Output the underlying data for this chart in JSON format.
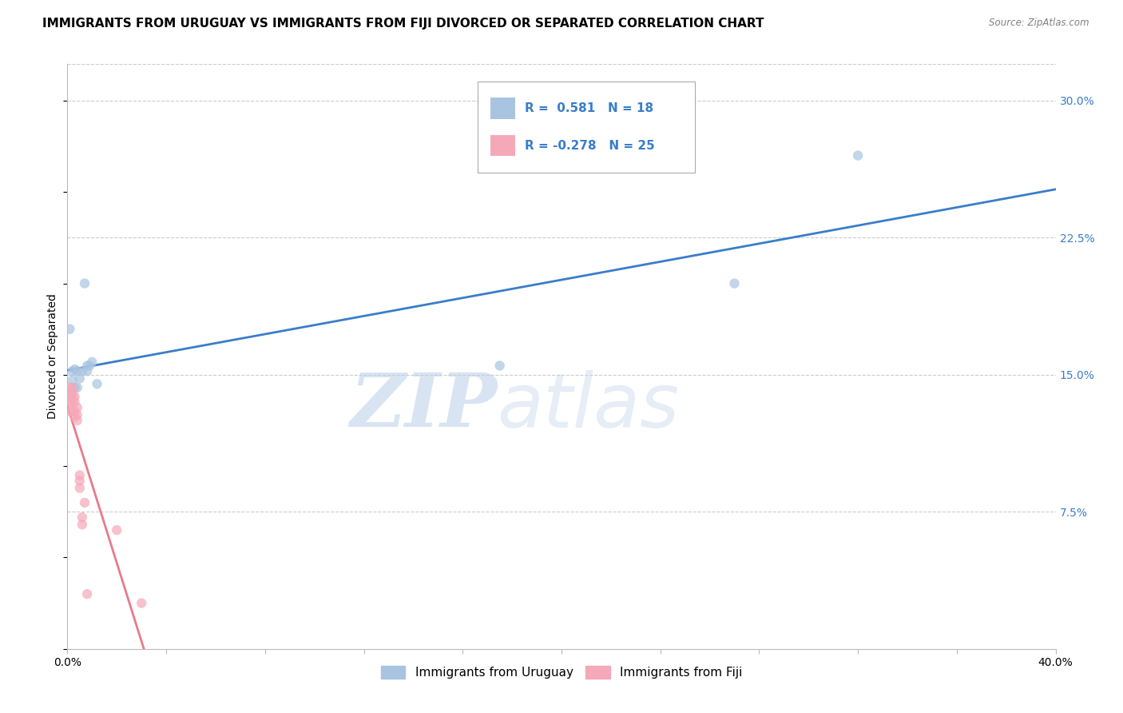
{
  "title": "IMMIGRANTS FROM URUGUAY VS IMMIGRANTS FROM FIJI DIVORCED OR SEPARATED CORRELATION CHART",
  "source": "Source: ZipAtlas.com",
  "ylabel": "Divorced or Separated",
  "xlabel_ticks": [
    "0.0%",
    "",
    "",
    "",
    "",
    "",
    "",
    "",
    "",
    "",
    "40.0%"
  ],
  "xlabel_vals": [
    0.0,
    0.04,
    0.08,
    0.12,
    0.16,
    0.2,
    0.24,
    0.28,
    0.32,
    0.36,
    0.4
  ],
  "ylabel_ticks": [
    "7.5%",
    "15.0%",
    "22.5%",
    "30.0%"
  ],
  "ylabel_vals": [
    0.075,
    0.15,
    0.225,
    0.3
  ],
  "xlim": [
    0.0,
    0.4
  ],
  "ylim": [
    0.0,
    0.32
  ],
  "uruguay_x": [
    0.001,
    0.002,
    0.002,
    0.003,
    0.003,
    0.004,
    0.004,
    0.005,
    0.006,
    0.007,
    0.008,
    0.008,
    0.009,
    0.01,
    0.012,
    0.175,
    0.27,
    0.32
  ],
  "uruguay_y": [
    0.175,
    0.147,
    0.152,
    0.143,
    0.153,
    0.143,
    0.152,
    0.148,
    0.152,
    0.2,
    0.152,
    0.155,
    0.155,
    0.157,
    0.145,
    0.155,
    0.2,
    0.27
  ],
  "fiji_x": [
    0.001,
    0.001,
    0.001,
    0.001,
    0.002,
    0.002,
    0.002,
    0.002,
    0.002,
    0.003,
    0.003,
    0.003,
    0.003,
    0.004,
    0.004,
    0.004,
    0.005,
    0.005,
    0.005,
    0.006,
    0.006,
    0.007,
    0.008,
    0.02,
    0.03
  ],
  "fiji_y": [
    0.13,
    0.135,
    0.14,
    0.143,
    0.13,
    0.135,
    0.138,
    0.14,
    0.143,
    0.127,
    0.13,
    0.135,
    0.138,
    0.125,
    0.128,
    0.132,
    0.088,
    0.092,
    0.095,
    0.068,
    0.072,
    0.08,
    0.03,
    0.065,
    0.025
  ],
  "uruguay_color": "#a8c4e0",
  "fiji_color": "#f4a8b8",
  "uruguay_line_color": "#3a7dc9",
  "fiji_line_color": "#e87a8a",
  "fiji_dash_color": "#e0b0bc",
  "background_color": "#ffffff",
  "grid_color": "#cccccc",
  "watermark_zip": "ZIP",
  "watermark_atlas": "atlas",
  "legend_R_uruguay": "0.581",
  "legend_N_uruguay": "18",
  "legend_R_fiji": "-0.278",
  "legend_N_fiji": "25",
  "legend_label_uruguay": "Immigrants from Uruguay",
  "legend_label_fiji": "Immigrants from Fiji",
  "title_fontsize": 11,
  "axis_label_fontsize": 10,
  "tick_fontsize": 10,
  "marker_size": 80
}
